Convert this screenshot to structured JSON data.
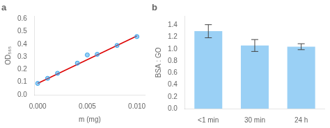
{
  "chart_data": [
    {
      "type": "scatter",
      "title": "a",
      "xlabel": "m (mg)",
      "ylabel": "OD₅₆₅",
      "series": [
        {
          "type": "scatter",
          "x": [
            0.0,
            0.001,
            0.002,
            0.004,
            0.005,
            0.006,
            0.008,
            0.01
          ],
          "values": [
            0.09,
            0.13,
            0.17,
            0.25,
            0.315,
            0.32,
            0.39,
            0.46
          ]
        },
        {
          "type": "line",
          "color": "#dd0000",
          "x": [
            0.0,
            0.01
          ],
          "values": [
            0.09,
            0.465
          ]
        }
      ],
      "xlim": [
        -0.0003,
        0.0108
      ],
      "xticks": [
        {
          "value": 0.0,
          "label": "0.000"
        },
        {
          "value": 0.005,
          "label": "0.005"
        },
        {
          "value": 0.01,
          "label": "0.010"
        }
      ],
      "ylim": [
        0.0,
        0.62
      ],
      "yticks": [
        {
          "value": 0.0,
          "label": "0.0"
        },
        0.1,
        0.2,
        0.3,
        0.4,
        0.5,
        0.6
      ],
      "grid": false
    },
    {
      "type": "bar",
      "title": "b",
      "ylabel": "BSA : GO",
      "categories": [
        "<1 min",
        "30 min",
        "24 h"
      ],
      "values": [
        1.3,
        1.06,
        1.04
      ],
      "errors": [
        0.11,
        0.1,
        0.05
      ],
      "ylim": [
        0.0,
        1.55
      ],
      "yticks": [
        {
          "value": 0.0,
          "label": "0.0"
        },
        0.2,
        0.4,
        0.6,
        0.8,
        {
          "value": 1.0,
          "label": "1.0"
        },
        1.2,
        1.4
      ],
      "grid": false
    }
  ]
}
